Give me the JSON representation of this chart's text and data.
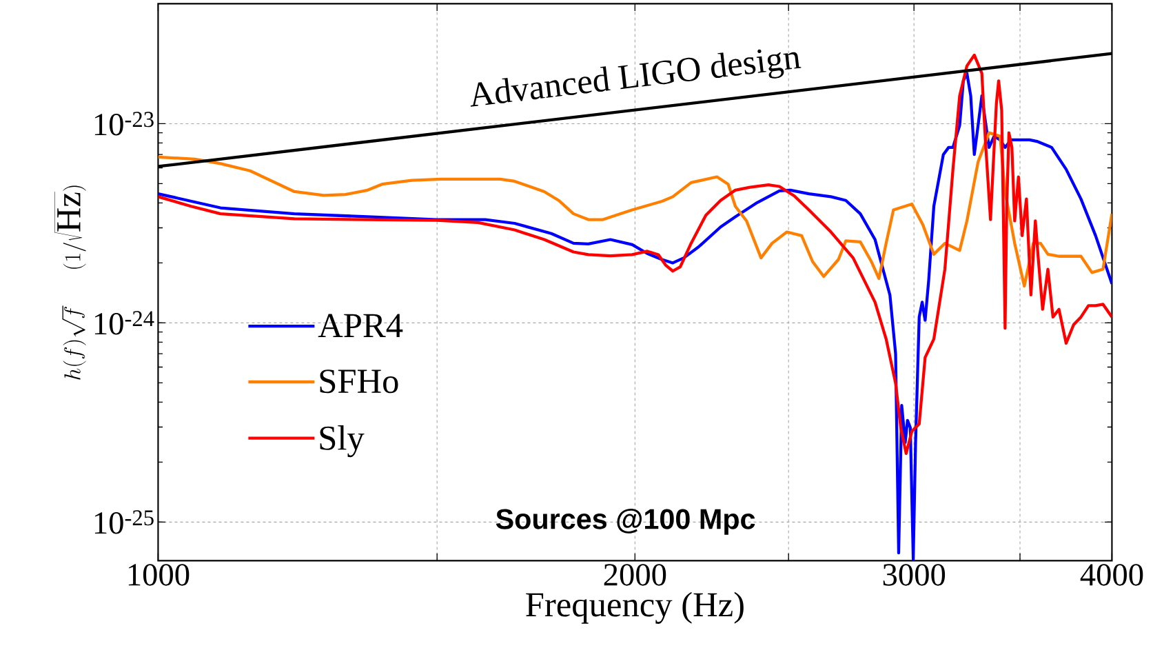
{
  "chart_data": {
    "type": "line",
    "xlabel": "Frequency (Hz)",
    "ylabel": "h(f)\\sqrt{f}\\quad (1/\\sqrt{\\mathrm{Hz}})",
    "log": "xy",
    "grid": true,
    "legend": "left",
    "xlim": [
      1000,
      4000
    ],
    "ylim": [
      6.4e-26,
      4e-23
    ],
    "xticks": [
      1000,
      {
        "value": 1500,
        "label": null
      },
      2000,
      {
        "value": 2500,
        "label": null
      },
      3000,
      {
        "value": 3500,
        "label": null
      },
      4000
    ],
    "yticks": [
      {
        "value": 1e-25,
        "label": "10$^{-25}$"
      },
      {
        "value": 1e-24,
        "label": "10$^{-24}$"
      },
      {
        "value": 1e-23,
        "label": "10$^{-23}$"
      }
    ],
    "annotations": [
      "Advanced LIGO design",
      "**Sources @100 Mpc**"
    ],
    "series": [
      {
        "name": "APR4",
        "color": "#0000ff",
        "x": [
          1000,
          1095,
          1219,
          1356,
          1500,
          1609,
          1679,
          1771,
          1829,
          1869,
          1930,
          1992,
          2036,
          2080,
          2113,
          2147,
          2194,
          2265,
          2314,
          2389,
          2467,
          2507,
          2575,
          2659,
          2717,
          2775,
          2835,
          2897,
          2921,
          2934,
          2947,
          2962,
          2972,
          2984,
          2997,
          3007,
          3023,
          3036,
          3049,
          3065,
          3088,
          3131,
          3155,
          3175,
          3206,
          3223,
          3240,
          3258,
          3275,
          3293,
          3311,
          3328,
          3346,
          3371,
          3400,
          3425,
          3455,
          3492,
          3549,
          3587,
          3665,
          3743,
          3824,
          3907,
          4000
        ],
        "values": [
          4.45e-24,
          3.78e-24,
          3.53e-24,
          3.41e-24,
          3.3e-24,
          3.3e-24,
          3.16e-24,
          2.81e-24,
          2.51e-24,
          2.49e-24,
          2.62e-24,
          2.47e-24,
          2.23e-24,
          2.08e-24,
          2e-24,
          2.12e-24,
          2.41e-24,
          3.03e-24,
          3.41e-24,
          4.02e-24,
          4.6e-24,
          4.64e-24,
          4.45e-24,
          4.3e-24,
          4.12e-24,
          3.53e-24,
          2.62e-24,
          1.38e-24,
          7e-25,
          7e-26,
          3.85e-25,
          2.51e-25,
          3.24e-25,
          2.98e-25,
          6.5e-26,
          2.51e-25,
          1.07e-24,
          1.27e-24,
          1.03e-24,
          1.64e-24,
          3.85e-24,
          7e-24,
          7.6e-24,
          7.6e-24,
          9.8e-24,
          1.64e-23,
          1.79e-23,
          1.38e-23,
          7e-24,
          9.8e-24,
          1.38e-23,
          1.03e-23,
          7.6e-24,
          8.65e-24,
          8.3e-24,
          7.6e-24,
          8.3e-24,
          8.3e-24,
          8.3e-24,
          8.15e-24,
          7.6e-24,
          5.9e-24,
          4.19e-24,
          2.74e-24,
          1.57e-24
        ]
      },
      {
        "name": "SFHo",
        "color": "#ff8000",
        "x": [
          1000,
          1055,
          1095,
          1143,
          1219,
          1272,
          1313,
          1356,
          1385,
          1446,
          1509,
          1644,
          1679,
          1753,
          1790,
          1829,
          1869,
          1909,
          1992,
          2080,
          2113,
          2170,
          2253,
          2290,
          2314,
          2352,
          2402,
          2441,
          2494,
          2548,
          2589,
          2631,
          2688,
          2717,
          2775,
          2820,
          2851,
          2881,
          2912,
          2991,
          3039,
          3088,
          3138,
          3206,
          3240,
          3293,
          3346,
          3400,
          3425,
          3473,
          3522,
          3568,
          3606,
          3645,
          3704,
          3824,
          3886,
          3949,
          4000
        ],
        "values": [
          6.8e-24,
          6.64e-24,
          6.3e-24,
          5.8e-24,
          4.56e-24,
          4.37e-24,
          4.41e-24,
          4.64e-24,
          4.97e-24,
          5.19e-24,
          5.27e-24,
          5.27e-24,
          5.14e-24,
          4.56e-24,
          4.12e-24,
          3.53e-24,
          3.3e-24,
          3.3e-24,
          3.69e-24,
          4.08e-24,
          4.3e-24,
          5.06e-24,
          5.41e-24,
          4.97e-24,
          3.85e-24,
          3.25e-24,
          2.12e-24,
          2.51e-24,
          2.86e-24,
          2.74e-24,
          2.03e-24,
          1.71e-24,
          2.08e-24,
          2.58e-24,
          2.55e-24,
          2.03e-24,
          1.67e-24,
          2.51e-24,
          3.69e-24,
          3.95e-24,
          3.11e-24,
          2.21e-24,
          2.51e-24,
          2.31e-24,
          3.25e-24,
          6.42e-24,
          9e-24,
          8.65e-24,
          4.56e-24,
          2.51e-24,
          1.53e-24,
          2.51e-24,
          2.51e-24,
          2.21e-24,
          2.16e-24,
          2.16e-24,
          1.79e-24,
          1.86e-24,
          3.53e-24
        ]
      },
      {
        "name": "Sly",
        "color": "#ff0000",
        "x": [
          1000,
          1049,
          1095,
          1219,
          1356,
          1500,
          1592,
          1679,
          1753,
          1829,
          1869,
          1930,
          1992,
          2036,
          2069,
          2091,
          2113,
          2136,
          2170,
          2217,
          2265,
          2314,
          2364,
          2428,
          2467,
          2521,
          2575,
          2659,
          2746,
          2835,
          2881,
          2921,
          2943,
          2966,
          2991,
          3023,
          3049,
          3088,
          3138,
          3175,
          3206,
          3240,
          3275,
          3311,
          3328,
          3353,
          3371,
          3382,
          3393,
          3408,
          3419,
          3425,
          3433,
          3444,
          3459,
          3473,
          3492,
          3511,
          3533,
          3556,
          3579,
          3594,
          3617,
          3645,
          3672,
          3704,
          3743,
          3784,
          3824,
          3866,
          3907,
          3949,
          4000
        ],
        "values": [
          4.3e-24,
          3.85e-24,
          3.53e-24,
          3.33e-24,
          3.3e-24,
          3.27e-24,
          3.19e-24,
          2.93e-24,
          2.62e-24,
          2.27e-24,
          2.2e-24,
          2.17e-24,
          2.2e-24,
          2.29e-24,
          2.2e-24,
          1.95e-24,
          1.82e-24,
          1.91e-24,
          2.51e-24,
          3.47e-24,
          4.12e-24,
          4.64e-24,
          4.8e-24,
          4.93e-24,
          4.84e-24,
          4.34e-24,
          3.69e-24,
          2.86e-24,
          2.12e-24,
          1.27e-24,
          8.3e-25,
          4.97e-25,
          2.98e-25,
          2.21e-25,
          2.86e-25,
          3.11e-25,
          6.7e-25,
          8.3e-25,
          1.86e-24,
          5.9e-24,
          1.38e-23,
          1.95e-23,
          2.21e-23,
          1.79e-23,
          8.3e-24,
          3.3e-24,
          7.6e-24,
          1.27e-23,
          1.64e-23,
          1.17e-23,
          2.31e-24,
          9.4e-25,
          3.85e-24,
          9e-24,
          7.6e-24,
          3.25e-24,
          5.41e-24,
          2.74e-24,
          4.19e-24,
          1.38e-24,
          3.25e-24,
          2.12e-24,
          1.17e-24,
          1.86e-24,
          1.07e-24,
          1.17e-24,
          7.9e-25,
          9.8e-25,
          1.07e-24,
          1.22e-24,
          1.22e-24,
          1.24e-24,
          1.07e-24
        ]
      },
      {
        "color": "#000000",
        "x": [
          1000,
          4000
        ],
        "values": [
          6.1e-24,
          2.25e-23
        ]
      }
    ]
  }
}
